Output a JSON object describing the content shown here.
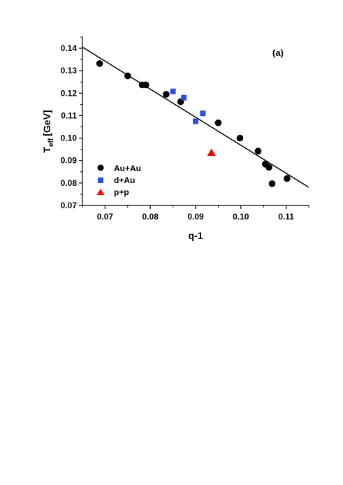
{
  "chart_data": {
    "type": "scatter",
    "panel_label": "(a)",
    "xlabel": "q-1",
    "ylabel": "T",
    "ylabel_sub": "eff",
    "ylabel_unit": "[GeV]",
    "xlim": [
      0.065,
      0.115
    ],
    "ylim": [
      0.07,
      0.145
    ],
    "xticks": [
      0.07,
      0.08,
      0.09,
      0.1,
      0.11
    ],
    "xtick_labels": [
      "0.07",
      "0.08",
      "0.09",
      "0.10",
      "0.11"
    ],
    "yticks": [
      0.07,
      0.08,
      0.09,
      0.1,
      0.11,
      0.12,
      0.13,
      0.14
    ],
    "ytick_labels": [
      "0.07",
      "0.08",
      "0.09",
      "0.10",
      "0.11",
      "0.12",
      "0.13",
      "0.14"
    ],
    "legend_position": "lower-left",
    "series": [
      {
        "name": "Au+Au",
        "marker": "circle",
        "color": "#000000",
        "points": [
          [
            0.0688,
            0.1332
          ],
          [
            0.075,
            0.1277
          ],
          [
            0.0782,
            0.1237
          ],
          [
            0.079,
            0.1237
          ],
          [
            0.0835,
            0.1195
          ],
          [
            0.0867,
            0.1162
          ],
          [
            0.095,
            0.1068
          ],
          [
            0.0998,
            0.1
          ],
          [
            0.1038,
            0.0942
          ],
          [
            0.1054,
            0.0884
          ],
          [
            0.1062,
            0.087
          ],
          [
            0.1069,
            0.0797
          ],
          [
            0.1102,
            0.082
          ]
        ]
      },
      {
        "name": "d+Au",
        "marker": "square",
        "color": "#2a4fe0",
        "points": [
          [
            0.085,
            0.1208
          ],
          [
            0.0874,
            0.118
          ],
          [
            0.09,
            0.1075
          ],
          [
            0.0916,
            0.111
          ]
        ]
      },
      {
        "name": "p+p",
        "marker": "triangle",
        "color": "#ff0000",
        "points": [
          [
            0.0935,
            0.0935
          ]
        ]
      }
    ],
    "fit_line": {
      "x": [
        0.065,
        0.115
      ],
      "y": [
        0.1405,
        0.0781
      ],
      "color": "#000000"
    }
  }
}
